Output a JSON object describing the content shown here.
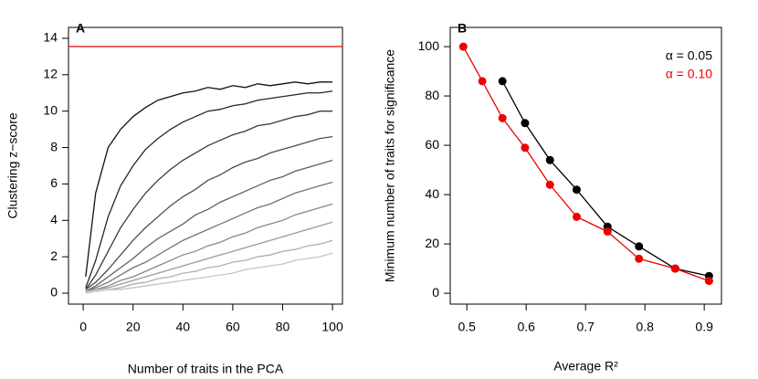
{
  "chart_data": [
    {
      "type": "line",
      "panel_label": "A",
      "x_label": "Number of traits in the PCA",
      "y_label": "Clustering z−score",
      "x": [
        1,
        5,
        10,
        15,
        20,
        25,
        30,
        35,
        40,
        45,
        50,
        55,
        60,
        65,
        70,
        75,
        80,
        85,
        90,
        95,
        100
      ],
      "series": [
        {
          "color": "#111111",
          "values": [
            0.9,
            5.5,
            8.0,
            9.0,
            9.7,
            10.2,
            10.6,
            10.8,
            11.0,
            11.1,
            11.3,
            11.2,
            11.4,
            11.3,
            11.5,
            11.4,
            11.5,
            11.6,
            11.5,
            11.6,
            11.6
          ]
        },
        {
          "color": "#262626",
          "values": [
            0.3,
            1.8,
            4.2,
            5.9,
            7.0,
            7.9,
            8.5,
            9.0,
            9.4,
            9.7,
            10.0,
            10.1,
            10.3,
            10.4,
            10.6,
            10.7,
            10.8,
            10.9,
            11.0,
            11.0,
            11.1
          ]
        },
        {
          "color": "#3a3a3a",
          "values": [
            0.2,
            1.0,
            2.3,
            3.6,
            4.6,
            5.5,
            6.2,
            6.8,
            7.3,
            7.7,
            8.1,
            8.4,
            8.7,
            8.9,
            9.2,
            9.3,
            9.5,
            9.7,
            9.8,
            10.0,
            10.0
          ]
        },
        {
          "color": "#4d4d4d",
          "values": [
            0.2,
            0.6,
            1.3,
            2.1,
            2.9,
            3.6,
            4.2,
            4.8,
            5.3,
            5.7,
            6.2,
            6.5,
            6.9,
            7.2,
            7.4,
            7.7,
            7.9,
            8.1,
            8.3,
            8.5,
            8.6
          ]
        },
        {
          "color": "#616161",
          "values": [
            0.1,
            0.4,
            0.9,
            1.4,
            1.9,
            2.5,
            3.0,
            3.4,
            3.8,
            4.3,
            4.6,
            5.0,
            5.3,
            5.6,
            5.9,
            6.2,
            6.4,
            6.7,
            6.9,
            7.1,
            7.3
          ]
        },
        {
          "color": "#747474",
          "values": [
            0.1,
            0.3,
            0.6,
            1.0,
            1.4,
            1.7,
            2.1,
            2.5,
            2.9,
            3.2,
            3.5,
            3.8,
            4.1,
            4.4,
            4.7,
            4.9,
            5.2,
            5.5,
            5.7,
            5.9,
            6.1
          ]
        },
        {
          "color": "#888888",
          "values": [
            0.1,
            0.2,
            0.4,
            0.7,
            0.9,
            1.2,
            1.5,
            1.8,
            2.1,
            2.3,
            2.6,
            2.8,
            3.1,
            3.3,
            3.6,
            3.8,
            4.0,
            4.3,
            4.5,
            4.7,
            4.9
          ]
        },
        {
          "color": "#9b9b9b",
          "values": [
            0.1,
            0.2,
            0.3,
            0.5,
            0.7,
            0.9,
            1.1,
            1.3,
            1.5,
            1.7,
            1.9,
            2.1,
            2.3,
            2.5,
            2.7,
            2.9,
            3.1,
            3.3,
            3.5,
            3.7,
            3.9
          ]
        },
        {
          "color": "#afafaf",
          "values": [
            0.0,
            0.1,
            0.2,
            0.3,
            0.5,
            0.6,
            0.8,
            0.9,
            1.1,
            1.2,
            1.4,
            1.5,
            1.7,
            1.8,
            2.0,
            2.1,
            2.3,
            2.4,
            2.6,
            2.7,
            2.9
          ]
        },
        {
          "color": "#c4c4c4",
          "values": [
            0.0,
            0.1,
            0.2,
            0.2,
            0.3,
            0.4,
            0.5,
            0.6,
            0.7,
            0.8,
            0.9,
            1.0,
            1.1,
            1.3,
            1.4,
            1.5,
            1.6,
            1.8,
            1.9,
            2.0,
            2.2
          ]
        }
      ],
      "hline": 13.55,
      "hline_color": "#e41a1c",
      "xlim": [
        -5.9,
        104
      ],
      "xticks": [
        0,
        20,
        40,
        60,
        80,
        100
      ],
      "ylim": [
        -0.6,
        14.6
      ],
      "yticks": [
        0,
        2,
        4,
        6,
        8,
        10,
        12,
        14
      ]
    },
    {
      "type": "line",
      "panel_label": "B",
      "x_label": "Average R²",
      "y_label": "Minimum number of traits for significance",
      "markers": true,
      "legend": "top-right",
      "series": [
        {
          "name": "α = 0.05",
          "color": "#000000",
          "x": [
            0.56,
            0.598,
            0.64,
            0.685,
            0.737,
            0.79,
            0.851,
            0.908
          ],
          "values": [
            86,
            69,
            54,
            42,
            27,
            19,
            10,
            7
          ]
        },
        {
          "name": "α = 0.10",
          "color": "#ee0000",
          "x": [
            0.494,
            0.526,
            0.56,
            0.598,
            0.64,
            0.685,
            0.737,
            0.79,
            0.851,
            0.908
          ],
          "values": [
            100,
            86,
            71,
            59,
            44,
            31,
            25,
            14,
            10,
            5
          ]
        }
      ],
      "xlim": [
        0.472,
        0.929
      ],
      "xticks": [
        0.5,
        0.6,
        0.7,
        0.8,
        0.9
      ],
      "ylim": [
        -4.4,
        107.8
      ],
      "yticks": [
        0,
        20,
        40,
        60,
        80,
        100
      ]
    }
  ]
}
